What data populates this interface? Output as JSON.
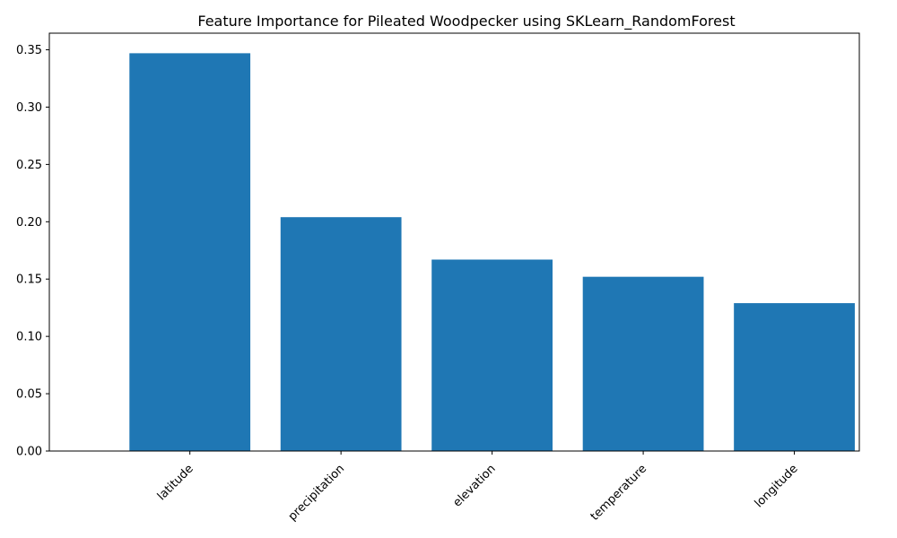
{
  "chart_data": {
    "type": "bar",
    "title": "Feature Importance for Pileated Woodpecker using SKLearn_RandomForest",
    "xlabel": "",
    "ylabel": "",
    "categories": [
      "latitude",
      "precipitation",
      "elevation",
      "temperature",
      "longitude"
    ],
    "values": [
      0.347,
      0.204,
      0.167,
      0.152,
      0.129
    ],
    "ylim": [
      0,
      0.3645
    ],
    "yticks": [
      0.0,
      0.05,
      0.1,
      0.15,
      0.2,
      0.25,
      0.3,
      0.35
    ],
    "ytick_labels": [
      "0.00",
      "0.05",
      "0.10",
      "0.15",
      "0.20",
      "0.25",
      "0.30",
      "0.35"
    ],
    "grid": false,
    "bar_color": "#1f77b4"
  }
}
